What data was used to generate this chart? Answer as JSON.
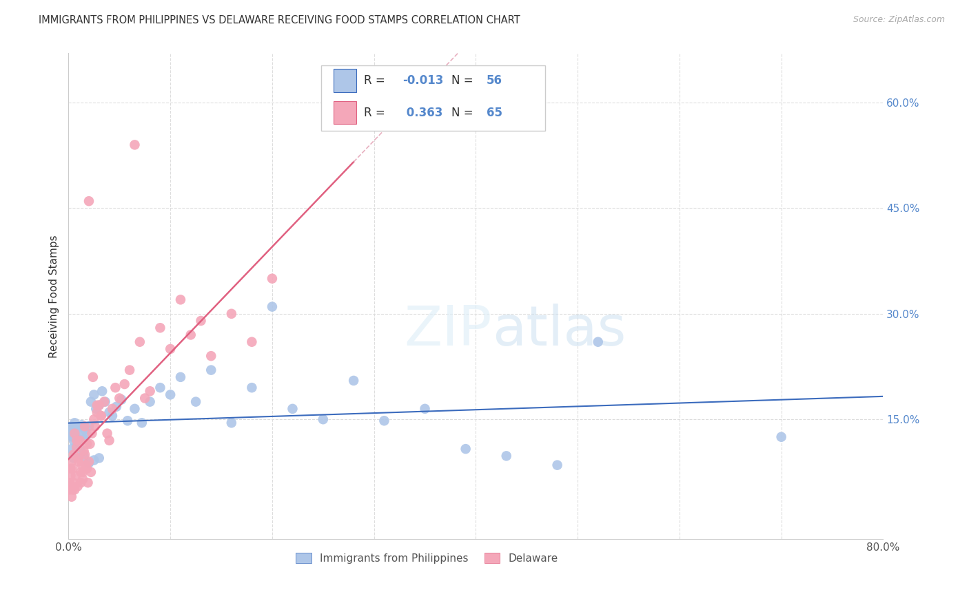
{
  "title": "IMMIGRANTS FROM PHILIPPINES VS DELAWARE RECEIVING FOOD STAMPS CORRELATION CHART",
  "source": "Source: ZipAtlas.com",
  "ylabel": "Receiving Food Stamps",
  "xlim": [
    0.0,
    0.8
  ],
  "ylim": [
    -0.02,
    0.67
  ],
  "grid_color": "#dddddd",
  "background_color": "#ffffff",
  "philippines_color": "#aec6e8",
  "delaware_color": "#f4a7b9",
  "philippines_line_color": "#3b6bbd",
  "delaware_line_color": "#e06080",
  "delaware_dashed_color": "#e8b0c0",
  "R_philippines": -0.013,
  "N_philippines": 56,
  "R_delaware": 0.363,
  "N_delaware": 65,
  "watermark": "ZIPatlas",
  "legend_labels": [
    "Immigrants from Philippines",
    "Delaware"
  ],
  "right_ytick_color": "#5588cc"
}
